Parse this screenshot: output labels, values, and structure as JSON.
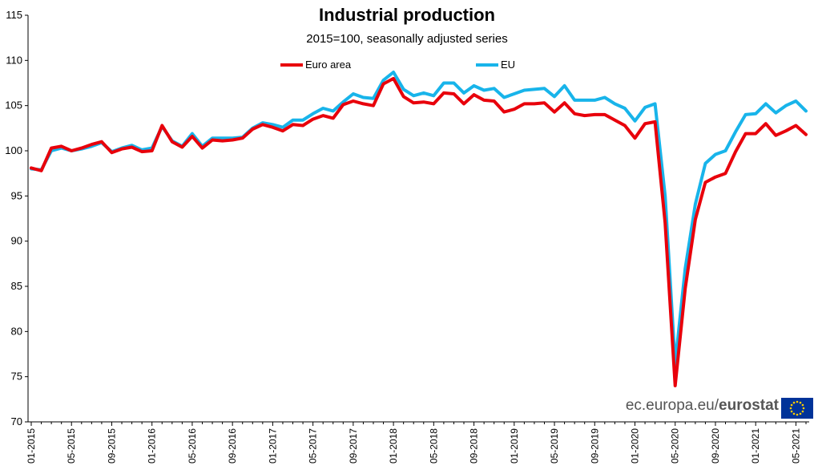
{
  "header": {
    "title": "Industrial production",
    "subtitle": "2015=100, seasonally adjusted series"
  },
  "legend": {
    "euro_area_label": "Euro area",
    "eu_label": "EU"
  },
  "source": {
    "prefix": "ec.europa.eu/",
    "brand": "eurostat"
  },
  "colors": {
    "euro_area": "#e8000b",
    "eu": "#18b4ea",
    "axis": "#000000",
    "source_text": "#555555",
    "flag_blue": "#003399",
    "flag_star": "#ffcc00"
  },
  "chart_data": {
    "type": "line",
    "title": "Industrial production",
    "subtitle": "2015=100, seasonally adjusted series",
    "xlabel": "",
    "ylabel": "",
    "ylim": [
      70,
      115
    ],
    "yticks": [
      70,
      75,
      80,
      85,
      90,
      95,
      100,
      105,
      110,
      115
    ],
    "grid": false,
    "legend_position": "top-center",
    "x": [
      "01-2015",
      "02-2015",
      "03-2015",
      "04-2015",
      "05-2015",
      "06-2015",
      "07-2015",
      "08-2015",
      "09-2015",
      "10-2015",
      "11-2015",
      "12-2015",
      "01-2016",
      "02-2016",
      "03-2016",
      "04-2016",
      "05-2016",
      "06-2016",
      "07-2016",
      "08-2016",
      "09-2016",
      "10-2016",
      "11-2016",
      "12-2016",
      "01-2017",
      "02-2017",
      "03-2017",
      "04-2017",
      "05-2017",
      "06-2017",
      "07-2017",
      "08-2017",
      "09-2017",
      "10-2017",
      "11-2017",
      "12-2017",
      "01-2018",
      "02-2018",
      "03-2018",
      "04-2018",
      "05-2018",
      "06-2018",
      "07-2018",
      "08-2018",
      "09-2018",
      "10-2018",
      "11-2018",
      "12-2018",
      "01-2019",
      "02-2019",
      "03-2019",
      "04-2019",
      "05-2019",
      "06-2019",
      "07-2019",
      "08-2019",
      "09-2019",
      "10-2019",
      "11-2019",
      "12-2019",
      "01-2020",
      "02-2020",
      "03-2020",
      "04-2020",
      "05-2020",
      "06-2020",
      "07-2020",
      "08-2020",
      "09-2020",
      "10-2020",
      "11-2020",
      "12-2020",
      "01-2021",
      "02-2021",
      "03-2021",
      "04-2021",
      "05-2021",
      "06-2021"
    ],
    "xtick_labels": [
      "01-2015",
      "05-2015",
      "09-2015",
      "01-2016",
      "05-2016",
      "09-2016",
      "01-2017",
      "05-2017",
      "09-2017",
      "01-2018",
      "05-2018",
      "09-2018",
      "01-2019",
      "05-2019",
      "09-2019",
      "01-2020",
      "05-2020",
      "09-2020",
      "01-2021",
      "05-2021"
    ],
    "series": [
      {
        "name": "Euro area",
        "color": "#e8000b",
        "values": [
          98.1,
          97.8,
          100.3,
          100.5,
          100.0,
          100.3,
          100.7,
          101.0,
          99.8,
          100.2,
          100.4,
          99.9,
          100.0,
          102.8,
          101.0,
          100.4,
          101.6,
          100.3,
          101.2,
          101.1,
          101.2,
          101.4,
          102.4,
          102.9,
          102.6,
          102.2,
          102.9,
          102.8,
          103.5,
          103.9,
          103.6,
          105.1,
          105.5,
          105.2,
          105.0,
          107.4,
          108.0,
          106.0,
          105.3,
          105.4,
          105.2,
          106.4,
          106.3,
          105.2,
          106.2,
          105.6,
          105.5,
          104.3,
          104.6,
          105.2,
          105.2,
          105.3,
          104.3,
          105.3,
          104.1,
          103.9,
          104.0,
          104.0,
          103.4,
          102.8,
          101.4,
          103.0,
          103.2,
          92.0,
          74.0,
          84.8,
          92.4,
          96.5,
          97.1,
          97.5,
          99.9,
          101.9,
          101.9,
          103.0,
          101.7,
          102.2,
          102.8,
          101.8
        ]
      },
      {
        "name": "EU",
        "color": "#18b4ea",
        "values": [
          98.0,
          97.9,
          100.0,
          100.3,
          100.0,
          100.2,
          100.5,
          100.9,
          99.9,
          100.3,
          100.6,
          100.1,
          100.3,
          102.7,
          101.1,
          100.5,
          101.9,
          100.5,
          101.4,
          101.4,
          101.4,
          101.5,
          102.5,
          103.1,
          102.9,
          102.6,
          103.4,
          103.4,
          104.1,
          104.7,
          104.4,
          105.4,
          106.3,
          105.9,
          105.8,
          107.8,
          108.7,
          106.8,
          106.1,
          106.4,
          106.1,
          107.5,
          107.5,
          106.4,
          107.2,
          106.7,
          106.9,
          105.9,
          106.3,
          106.7,
          106.8,
          106.9,
          106.0,
          107.2,
          105.6,
          105.6,
          105.6,
          105.9,
          105.2,
          104.7,
          103.3,
          104.8,
          105.2,
          95.0,
          76.4,
          87.0,
          94.1,
          98.6,
          99.6,
          100.0,
          102.1,
          104.0,
          104.1,
          105.2,
          104.2,
          105.0,
          105.5,
          104.4
        ]
      }
    ]
  }
}
